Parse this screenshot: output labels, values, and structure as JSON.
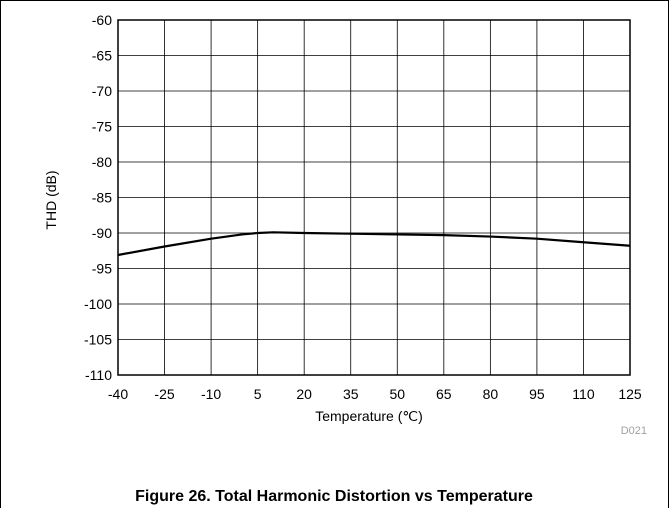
{
  "chart_data": {
    "type": "line",
    "xlabel": "Temperature (℃)",
    "ylabel": "THD (dB)",
    "xlim": [
      -40,
      125
    ],
    "ylim": [
      -110,
      -60
    ],
    "x_ticks": [
      -40,
      -25,
      -10,
      5,
      20,
      35,
      50,
      65,
      80,
      95,
      110,
      125
    ],
    "y_ticks": [
      -60,
      -65,
      -70,
      -75,
      -80,
      -85,
      -90,
      -95,
      -100,
      -105,
      -110
    ],
    "grid": true,
    "series": [
      {
        "x": [
          -40,
          -25,
          -10,
          0,
          5,
          10,
          20,
          35,
          50,
          65,
          80,
          95,
          110,
          125
        ],
        "y": [
          -93.1,
          -91.9,
          -90.8,
          -90.2,
          -90.0,
          -89.9,
          -90.0,
          -90.1,
          -90.2,
          -90.3,
          -90.5,
          -90.8,
          -91.3,
          -91.8
        ],
        "color": "#000000"
      }
    ]
  },
  "figure": {
    "code": "D021",
    "caption": "Figure 26. Total Harmonic Distortion vs Temperature"
  }
}
